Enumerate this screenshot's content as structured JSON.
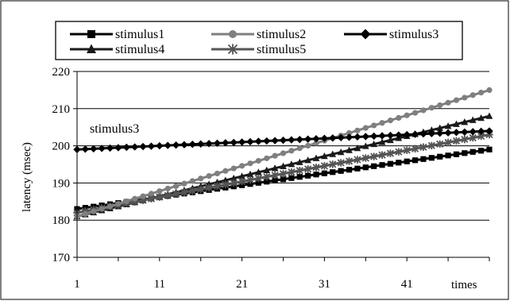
{
  "chart_data": {
    "type": "line",
    "title": "",
    "xlabel": "times",
    "ylabel": "latency (msec)",
    "ylim": [
      170,
      220
    ],
    "yticks": [
      170,
      180,
      190,
      200,
      210,
      220
    ],
    "xlim": [
      1,
      51
    ],
    "xticks": [
      1,
      11,
      21,
      31,
      41
    ],
    "grid": "horizontal",
    "legend_position": "top",
    "annotation": "stimulus3",
    "series": [
      {
        "name": "stimulus1",
        "marker": "square",
        "color": "#000000",
        "start": 183,
        "end": 199
      },
      {
        "name": "stimulus2",
        "marker": "circle",
        "color": "#7f7f7f",
        "start": 181,
        "end": 215
      },
      {
        "name": "stimulus3",
        "marker": "diamond",
        "color": "#000000",
        "start": 199,
        "end": 204
      },
      {
        "name": "stimulus4",
        "marker": "triangle",
        "color": "#1a1a1a",
        "start": 181,
        "end": 208
      },
      {
        "name": "stimulus5",
        "marker": "star",
        "color": "#555555",
        "start": 182,
        "end": 203
      }
    ]
  }
}
